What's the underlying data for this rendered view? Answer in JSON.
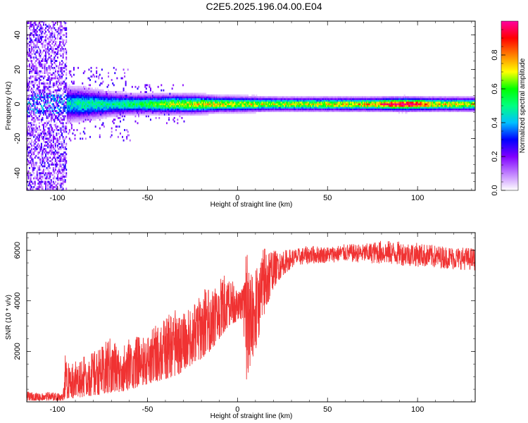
{
  "title": "C2E5.2025.196.04.00.E04",
  "chart_data": [
    {
      "type": "heatmap",
      "xlabel": "Height of straight line (km)",
      "ylabel": "Frequency (Hz)",
      "xlim": [
        -117,
        132
      ],
      "ylim": [
        -50,
        48
      ],
      "xticks": [
        -100,
        -50,
        0,
        50,
        100
      ],
      "xtick_labels": [
        "-100",
        "-50",
        "0",
        "50",
        "100"
      ],
      "yticks": [
        -40,
        -20,
        0,
        20,
        40
      ],
      "ytick_labels": [
        "-40",
        "-20",
        "0",
        "20",
        "40"
      ],
      "colorbar": {
        "label": "Normalized spectral amplitude",
        "range": [
          0.0,
          1.0
        ],
        "ticks": [
          0.0,
          0.2,
          0.4,
          0.6,
          0.8
        ],
        "tick_labels": [
          "0.0",
          "0.2",
          "0.4",
          "0.6",
          "0.8"
        ],
        "colormap_stops": [
          "#ffffff",
          "#c080ff",
          "#8000ff",
          "#0000ff",
          "#00c0ff",
          "#00ff80",
          "#00ff00",
          "#ffff00",
          "#ff8000",
          "#ff0000",
          "#ff00a0"
        ]
      },
      "noise_region_x": [
        -117,
        -95
      ],
      "band": [
        {
          "x": -95,
          "halfwidth": 9,
          "amp": 0.45
        },
        {
          "x": -85,
          "halfwidth": 8,
          "amp": 0.5
        },
        {
          "x": -70,
          "halfwidth": 6,
          "amp": 0.5
        },
        {
          "x": -55,
          "halfwidth": 5,
          "amp": 0.55
        },
        {
          "x": -40,
          "halfwidth": 5,
          "amp": 0.65
        },
        {
          "x": -25,
          "halfwidth": 5,
          "amp": 0.7
        },
        {
          "x": -10,
          "halfwidth": 4,
          "amp": 0.75
        },
        {
          "x": 0,
          "halfwidth": 4,
          "amp": 0.7
        },
        {
          "x": 20,
          "halfwidth": 3.5,
          "amp": 0.7
        },
        {
          "x": 50,
          "halfwidth": 3.5,
          "amp": 0.72
        },
        {
          "x": 75,
          "halfwidth": 3.5,
          "amp": 0.78
        },
        {
          "x": 92,
          "halfwidth": 3.5,
          "amp": 1.0
        },
        {
          "x": 110,
          "halfwidth": 3.5,
          "amp": 0.75
        },
        {
          "x": 132,
          "halfwidth": 3.5,
          "amp": 0.72
        }
      ]
    },
    {
      "type": "line",
      "xlabel": "Height of straight line (km)",
      "ylabel": "SNR (10 * v/v)",
      "xlim": [
        -117,
        132
      ],
      "ylim": [
        0,
        6700
      ],
      "xticks": [
        -100,
        -50,
        0,
        50,
        100
      ],
      "xtick_labels": [
        "-100",
        "-50",
        "0",
        "50",
        "100"
      ],
      "yticks": [
        2000,
        4000,
        6000
      ],
      "ytick_labels": [
        "2000",
        "4000",
        "6000"
      ],
      "color": "#f03232",
      "series": [
        {
          "x": [
            -117,
            -110,
            -105,
            -100,
            -97,
            -96,
            -93,
            -90,
            -85,
            -80,
            -75,
            -70,
            -65,
            -60,
            -55,
            -50,
            -45,
            -40,
            -35,
            -30,
            -25,
            -20,
            -15,
            -10,
            -5,
            0,
            3,
            5,
            7,
            8,
            10,
            15,
            20,
            25,
            30,
            35,
            40,
            50,
            60,
            70,
            80,
            90,
            100,
            110,
            120,
            132
          ],
          "y_low": [
            50,
            50,
            50,
            50,
            50,
            100,
            120,
            150,
            200,
            250,
            300,
            350,
            400,
            450,
            600,
            700,
            800,
            900,
            1000,
            1200,
            1500,
            1700,
            2000,
            2500,
            3000,
            3200,
            3300,
            800,
            1300,
            1700,
            2000,
            3500,
            4500,
            5000,
            5300,
            5400,
            5450,
            5500,
            5550,
            5500,
            5450,
            5400,
            5350,
            5300,
            5250,
            5200
          ],
          "y_high": [
            400,
            350,
            400,
            350,
            300,
            1900,
            1500,
            1700,
            1800,
            2000,
            2200,
            2700,
            2000,
            2600,
            2600,
            2600,
            3100,
            3300,
            3700,
            3500,
            3800,
            4400,
            4700,
            4800,
            5300,
            4300,
            4600,
            6600,
            5000,
            5200,
            5300,
            6200,
            6000,
            6000,
            6050,
            6100,
            6200,
            6150,
            6250,
            6250,
            6400,
            6350,
            6300,
            6200,
            6150,
            6100
          ]
        }
      ]
    }
  ]
}
